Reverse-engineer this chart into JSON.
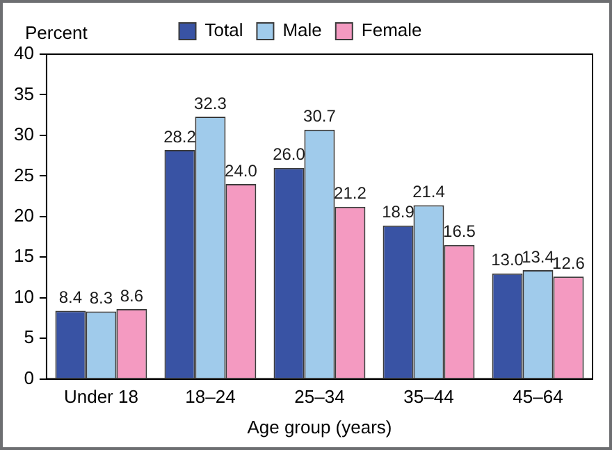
{
  "chart_data": {
    "type": "bar",
    "xlabel": "Age group (years)",
    "ylabel": "Percent",
    "categories": [
      "Under 18",
      "18–24",
      "25–34",
      "35–44",
      "45–64"
    ],
    "series": [
      {
        "name": "Total",
        "color": "#3953a4",
        "values": [
          8.4,
          28.2,
          26.0,
          18.9,
          13.0
        ],
        "value_labels": [
          "8.4",
          "28.2",
          "26.0",
          "18.9",
          "13.0"
        ]
      },
      {
        "name": "Male",
        "color": "#a0cbeb",
        "values": [
          8.3,
          32.3,
          30.7,
          21.4,
          13.4
        ],
        "value_labels": [
          "8.3",
          "32.3",
          "30.7",
          "21.4",
          "13.4"
        ]
      },
      {
        "name": "Female",
        "color": "#f49ac1",
        "values": [
          8.6,
          24.0,
          21.2,
          16.5,
          12.6
        ],
        "value_labels": [
          "8.6",
          "24.0",
          "21.2",
          "16.5",
          "12.6"
        ]
      }
    ],
    "ylim": [
      0,
      40
    ],
    "yticks": [
      0,
      5,
      10,
      15,
      20,
      25,
      30,
      35,
      40
    ],
    "grid": false,
    "legend": "top"
  }
}
